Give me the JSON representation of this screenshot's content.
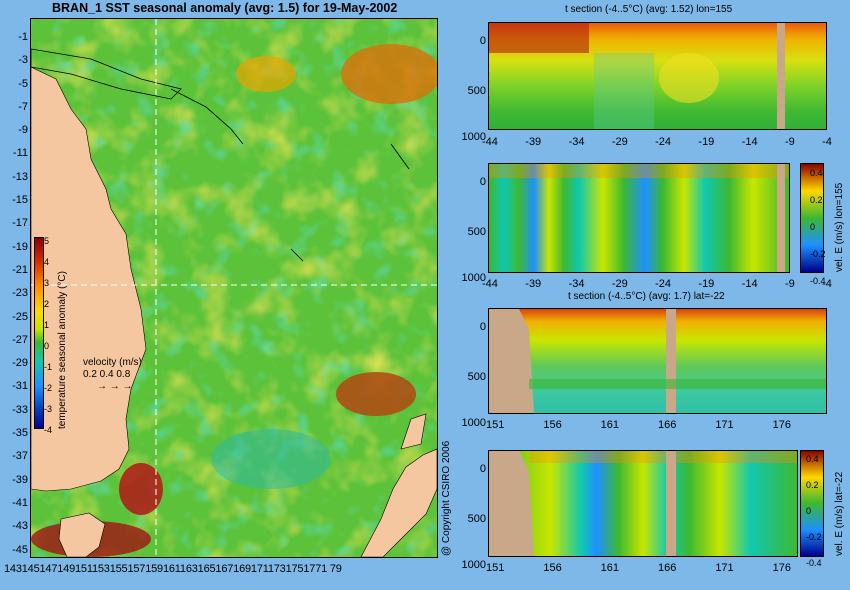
{
  "main_map": {
    "title": "BRAN_1 SST seasonal anomaly (avg: 1.5) for 19-May-2002",
    "lat_ticks": [
      "-1",
      "-3",
      "-5",
      "-7",
      "-9",
      "-11",
      "-13",
      "-15",
      "-17",
      "-19",
      "-21",
      "-23",
      "-25",
      "-27",
      "-29",
      "-31",
      "-33",
      "-35",
      "-37",
      "-39",
      "-41",
      "-43",
      "-45"
    ],
    "lon_ticks_text": "1431451471491511531551571591611631651671691711731751771 79",
    "colorbar": {
      "label": "temperature seasonal anomaly (°C)",
      "ticks": [
        "5",
        "4",
        "3",
        "2",
        "1",
        "0",
        "-1",
        "-2",
        "-3",
        "-4"
      ],
      "colors": [
        "#8b0000",
        "#d42a00",
        "#ff8c00",
        "#ffd700",
        "#c8e600",
        "#3cb832",
        "#10c8b0",
        "#1e90ff",
        "#0040c0",
        "#00008b"
      ]
    },
    "velocity_legend": {
      "label": "velocity (m/s)",
      "values": "0.2 0.4 0.8"
    }
  },
  "panels": [
    {
      "title": "t section (-4..5°C) (avg: 1.52) lon=155",
      "y_ticks": [
        "0",
        "500",
        "1000"
      ],
      "x_ticks": [
        "-44",
        "-39",
        "-34",
        "-29",
        "-24",
        "-19",
        "-14",
        "-9",
        "-4"
      ]
    },
    {
      "title": "",
      "y_ticks": [
        "0",
        "500",
        "1000"
      ],
      "x_ticks": [
        "-44",
        "-39",
        "-34",
        "-29",
        "-24",
        "-19",
        "-14",
        "-9",
        "-4"
      ],
      "colorbar": {
        "label": "vel. E (m/s) lon=155",
        "ticks": [
          "0.4",
          "0.2",
          "0",
          "-0.2",
          "-0.4"
        ]
      }
    },
    {
      "title": "t section (-4..5°C) (avg: 1.7) lat=-22",
      "y_ticks": [
        "0",
        "500",
        "1000"
      ],
      "x_ticks": [
        "151",
        "156",
        "161",
        "166",
        "171",
        "176"
      ]
    },
    {
      "title": "",
      "y_ticks": [
        "0",
        "500",
        "1000"
      ],
      "x_ticks": [
        "151",
        "156",
        "161",
        "166",
        "171",
        "176"
      ],
      "colorbar": {
        "label": "vel. E (m/s) lat=-22",
        "ticks": [
          "0.4",
          "0.2",
          "0",
          "-0.2",
          "-0.4"
        ]
      }
    }
  ],
  "copyright": "@ Copyright CSIRO 2006"
}
